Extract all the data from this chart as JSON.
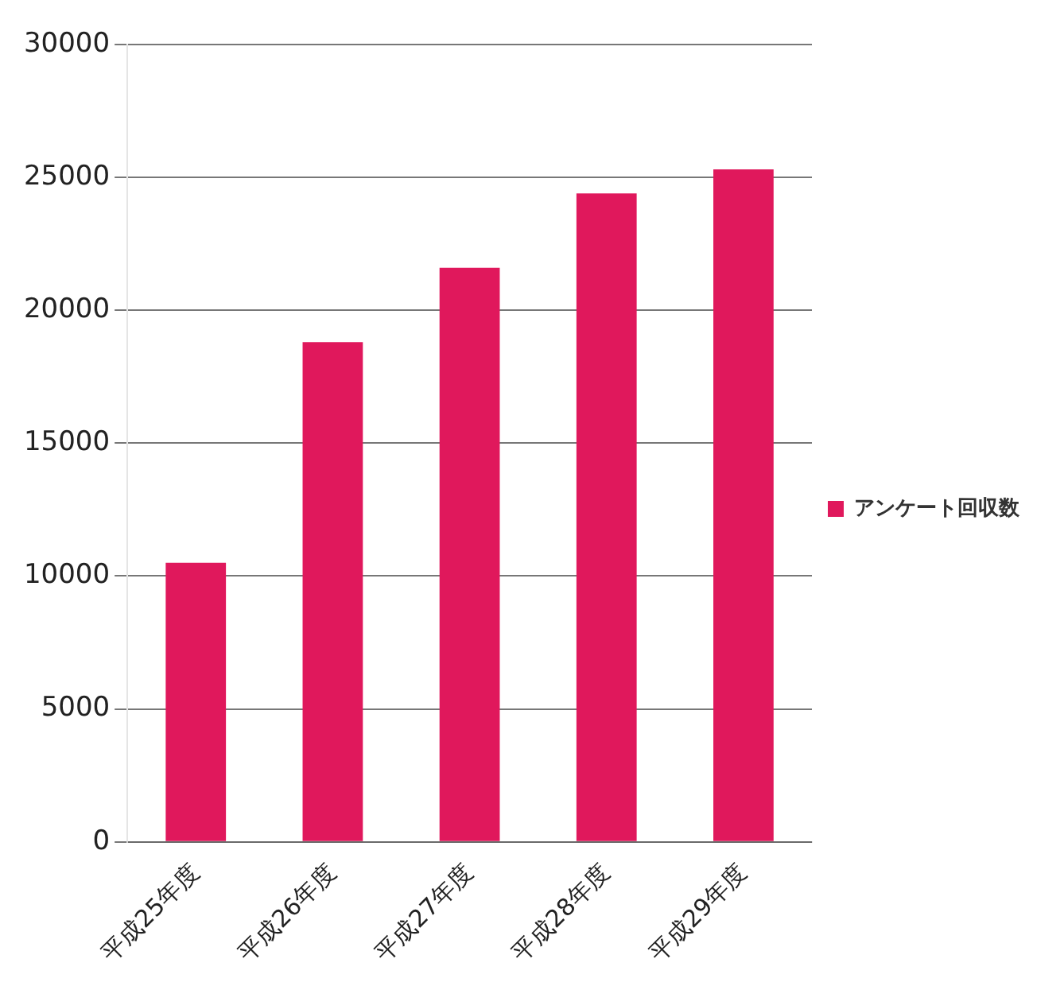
{
  "chart_data": {
    "type": "bar",
    "categories": [
      "平成25年度",
      "平成26年度",
      "平成27年度",
      "平成28年度",
      "平成29年度"
    ],
    "series": [
      {
        "name": "アンケート回収数",
        "color": "#e0185c",
        "values": [
          10500,
          18800,
          21600,
          24400,
          25300
        ]
      }
    ],
    "ylim": [
      0,
      30000
    ],
    "yticks": [
      0,
      5000,
      10000,
      15000,
      20000,
      25000,
      30000
    ],
    "grid": "y",
    "legend": "right"
  }
}
